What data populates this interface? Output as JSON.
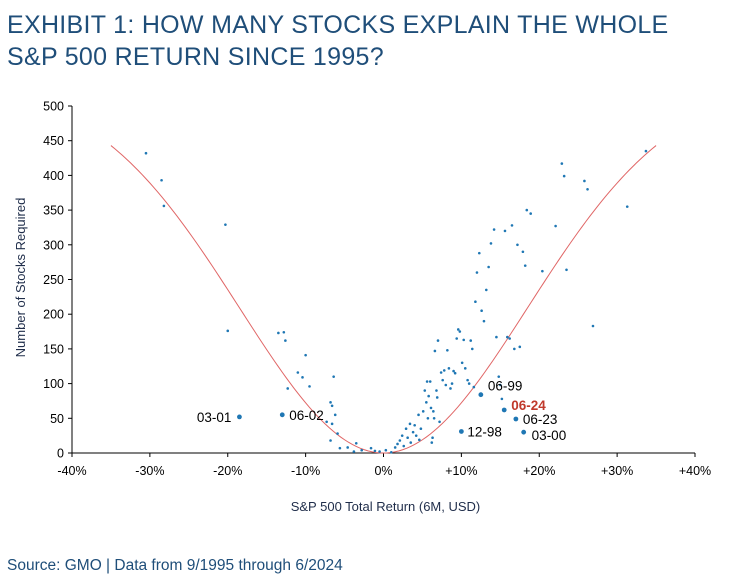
{
  "title": "EXHIBIT 1: HOW MANY STOCKS EXPLAIN THE WHOLE S&P 500 RETURN SINCE 1995?",
  "source": "Source: GMO | Data from 9/1995 through 6/2024",
  "colors": {
    "title": "#1f4e79",
    "points": "#1f77b4",
    "curve": "#e06666",
    "highlight": "#c0392b",
    "axis": "#000000"
  },
  "chart_data": {
    "type": "scatter",
    "xlabel": "S&P 500 Total Return (6M, USD)",
    "ylabel": "Number of Stocks Required",
    "xlim": [
      -40,
      40
    ],
    "ylim": [
      0,
      500
    ],
    "x_ticks": [
      -40,
      -30,
      -20,
      -10,
      0,
      10,
      20,
      30,
      40
    ],
    "x_tick_labels": [
      "-40%",
      "-30%",
      "-20%",
      "-10%",
      "0%",
      "+10%",
      "+20%",
      "+30%",
      "+40%"
    ],
    "y_ticks": [
      0,
      50,
      100,
      150,
      200,
      250,
      300,
      350,
      400,
      450,
      500
    ],
    "y_tick_labels": [
      "0",
      "50",
      "100",
      "150",
      "200",
      "250",
      "300",
      "350",
      "400",
      "450",
      "500"
    ],
    "grid": false,
    "fit_curve": {
      "x_range": [
        -35,
        35
      ],
      "peak": 443
    },
    "labeled_points": [
      {
        "label": "03-01",
        "x": -18.5,
        "y": 52,
        "highlight": false
      },
      {
        "label": "06-02",
        "x": -13,
        "y": 55,
        "highlight": false
      },
      {
        "label": "06-99",
        "x": 12.5,
        "y": 84,
        "highlight": false
      },
      {
        "label": "06-24",
        "x": 15.5,
        "y": 62,
        "highlight": true
      },
      {
        "label": "06-23",
        "x": 17,
        "y": 49,
        "highlight": false
      },
      {
        "label": "12-98",
        "x": 10,
        "y": 31,
        "highlight": false
      },
      {
        "label": "03-00",
        "x": 18,
        "y": 30,
        "highlight": false
      }
    ],
    "points": [
      [
        -30.5,
        432
      ],
      [
        -28.5,
        393
      ],
      [
        -28.2,
        356
      ],
      [
        -20.3,
        329
      ],
      [
        -20,
        176
      ],
      [
        -13.5,
        173
      ],
      [
        -12.8,
        174
      ],
      [
        -12.6,
        162
      ],
      [
        -12.3,
        93
      ],
      [
        -11,
        116
      ],
      [
        -10.4,
        109
      ],
      [
        -10,
        141
      ],
      [
        -9.5,
        96
      ],
      [
        -6.8,
        73
      ],
      [
        -6.6,
        68
      ],
      [
        -6.4,
        110
      ],
      [
        -6.2,
        55
      ],
      [
        -7.3,
        45
      ],
      [
        -6.6,
        42
      ],
      [
        -6.8,
        18
      ],
      [
        -5.9,
        28
      ],
      [
        -5.6,
        7
      ],
      [
        -4.6,
        8
      ],
      [
        -3.8,
        2
      ],
      [
        -3.5,
        14
      ],
      [
        -2.8,
        4
      ],
      [
        -1.6,
        7
      ],
      [
        -1.1,
        3
      ],
      [
        -0.5,
        2
      ],
      [
        0.3,
        4
      ],
      [
        1,
        1
      ],
      [
        1.5,
        8
      ],
      [
        1.8,
        13
      ],
      [
        2.1,
        18
      ],
      [
        2.4,
        25
      ],
      [
        2.6,
        10
      ],
      [
        2.9,
        35
      ],
      [
        3.1,
        22
      ],
      [
        3.4,
        42
      ],
      [
        3.5,
        15
      ],
      [
        3.8,
        30
      ],
      [
        4,
        40
      ],
      [
        4.2,
        25
      ],
      [
        4.5,
        55
      ],
      [
        4.6,
        19
      ],
      [
        4.8,
        35
      ],
      [
        5.1,
        60
      ],
      [
        5.3,
        90
      ],
      [
        5.5,
        73
      ],
      [
        5.6,
        103
      ],
      [
        5.7,
        50
      ],
      [
        5.8,
        82
      ],
      [
        6.0,
        103
      ],
      [
        6.1,
        65
      ],
      [
        6.2,
        15
      ],
      [
        6.3,
        22
      ],
      [
        6.4,
        60
      ],
      [
        6.5,
        50
      ],
      [
        6.6,
        147
      ],
      [
        6.8,
        90
      ],
      [
        6.9,
        80
      ],
      [
        7.0,
        162
      ],
      [
        7.2,
        45
      ],
      [
        7.4,
        116
      ],
      [
        7.6,
        105
      ],
      [
        7.8,
        119
      ],
      [
        8.0,
        98
      ],
      [
        8.2,
        148
      ],
      [
        8.4,
        122
      ],
      [
        8.6,
        93
      ],
      [
        8.8,
        100
      ],
      [
        9.0,
        118
      ],
      [
        9.2,
        115
      ],
      [
        9.4,
        165
      ],
      [
        9.6,
        178
      ],
      [
        9.8,
        175
      ],
      [
        10.1,
        130
      ],
      [
        10.3,
        163
      ],
      [
        10.5,
        122
      ],
      [
        10.8,
        105
      ],
      [
        11.0,
        100
      ],
      [
        11.2,
        162
      ],
      [
        11.4,
        150
      ],
      [
        11.6,
        95
      ],
      [
        11.8,
        218
      ],
      [
        12.0,
        260
      ],
      [
        12.3,
        288
      ],
      [
        12.6,
        205
      ],
      [
        12.9,
        190
      ],
      [
        13.2,
        235
      ],
      [
        13.5,
        268
      ],
      [
        13.8,
        302
      ],
      [
        14.2,
        322
      ],
      [
        14.5,
        167
      ],
      [
        14.8,
        110
      ],
      [
        15.0,
        98
      ],
      [
        15.2,
        78
      ],
      [
        15.6,
        320
      ],
      [
        15.9,
        167
      ],
      [
        16.2,
        165
      ],
      [
        16.5,
        328
      ],
      [
        16.8,
        150
      ],
      [
        17.2,
        300
      ],
      [
        17.5,
        153
      ],
      [
        17.9,
        290
      ],
      [
        18.2,
        270
      ],
      [
        18.4,
        350
      ],
      [
        18.9,
        345
      ],
      [
        20.4,
        262
      ],
      [
        22.1,
        327
      ],
      [
        22.9,
        417
      ],
      [
        23.2,
        399
      ],
      [
        23.5,
        264
      ],
      [
        25.8,
        392
      ],
      [
        26.2,
        380
      ],
      [
        26.9,
        183
      ],
      [
        31.3,
        355
      ],
      [
        33.7,
        435
      ]
    ]
  }
}
